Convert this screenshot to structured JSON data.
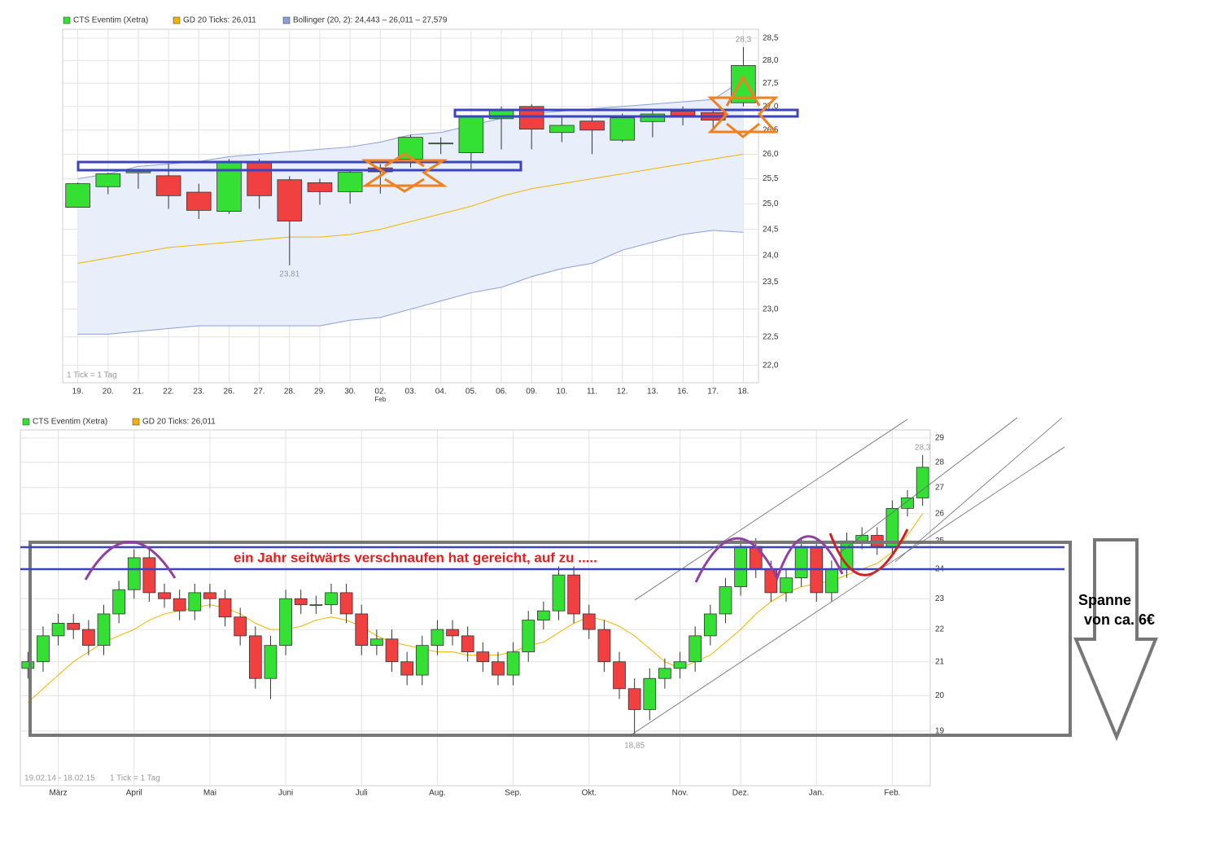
{
  "chart_data": [
    {
      "type": "candlestick",
      "log_scale": true,
      "grid": true,
      "categories": [
        "19.",
        "20.",
        "21.",
        "22.",
        "23.",
        "26.",
        "27.",
        "28.",
        "29.",
        "30.",
        "02.",
        "03.",
        "04.",
        "05.",
        "06.",
        "09.",
        "10.",
        "11.",
        "12.",
        "13.",
        "16.",
        "17.",
        "18."
      ],
      "x_sublabels": [
        null,
        null,
        null,
        null,
        null,
        null,
        null,
        null,
        null,
        null,
        "Feb",
        null,
        null,
        null,
        null,
        null,
        null,
        null,
        null,
        null,
        null,
        null,
        null
      ],
      "ylim": [
        21.7,
        28.7
      ],
      "yticks": [
        {
          "value": 22,
          "label": "22,0"
        },
        {
          "value": 22.5,
          "label": "22,5"
        },
        {
          "value": 23,
          "label": "23,0"
        },
        {
          "value": 23.5,
          "label": "23,5"
        },
        {
          "value": 24,
          "label": "24,0"
        },
        {
          "value": 24.5,
          "label": "24,5"
        },
        {
          "value": 25,
          "label": "25,0"
        },
        {
          "value": 25.5,
          "label": "25,5"
        },
        {
          "value": 26,
          "label": "26,0"
        },
        {
          "value": 26.5,
          "label": "26,5"
        },
        {
          "value": 27,
          "label": "27,0"
        },
        {
          "value": 27.5,
          "label": "27,5"
        },
        {
          "value": 28,
          "label": "28,0"
        },
        {
          "value": 28.5,
          "label": "28,5"
        }
      ],
      "up_color": "#33e033",
      "down_color": "#f04040",
      "series": [
        {
          "name": "CTS Eventim (Xetra)",
          "style": "candlestick",
          "color": "#33e033",
          "open": [
            24.93,
            25.34,
            25.62,
            25.56,
            25.23,
            24.85,
            25.82,
            25.48,
            25.42,
            25.24,
            25.72,
            25.9,
            26.23,
            26.03,
            26.74,
            27.0,
            26.45,
            26.69,
            26.29,
            26.68,
            26.9,
            26.87,
            27.08
          ],
          "high": [
            25.42,
            25.62,
            25.7,
            25.8,
            25.4,
            25.9,
            25.9,
            25.55,
            25.5,
            25.66,
            25.8,
            26.4,
            26.35,
            26.8,
            27.0,
            27.05,
            26.8,
            26.8,
            26.85,
            26.9,
            27.0,
            26.95,
            28.3
          ],
          "low": [
            24.93,
            25.19,
            25.3,
            24.9,
            24.7,
            24.8,
            24.9,
            23.81,
            24.98,
            25.0,
            25.2,
            25.73,
            26.0,
            25.7,
            26.1,
            26.1,
            26.25,
            26.0,
            26.25,
            26.35,
            26.6,
            26.45,
            27.0
          ],
          "close": [
            25.4,
            25.6,
            25.65,
            25.16,
            24.87,
            25.84,
            25.16,
            24.66,
            25.24,
            25.63,
            25.64,
            26.35,
            26.23,
            26.77,
            26.92,
            26.52,
            26.6,
            26.5,
            26.76,
            26.84,
            26.81,
            26.71,
            27.89
          ]
        },
        {
          "name": "GD 20 Ticks: 26,011",
          "style": "line",
          "color": "#f0b400",
          "values": [
            23.85,
            23.95,
            24.05,
            24.15,
            24.2,
            24.25,
            24.3,
            24.35,
            24.35,
            24.4,
            24.5,
            24.65,
            24.8,
            24.95,
            25.15,
            25.3,
            25.4,
            25.5,
            25.6,
            25.7,
            25.8,
            25.9,
            26.0
          ]
        },
        {
          "name": "Bollinger (20, 2): 24,443 – 26,011 – 27,579",
          "style": "band",
          "color": "#8aa0d8",
          "upper": [
            25.5,
            25.6,
            25.75,
            25.8,
            25.85,
            25.95,
            26.0,
            26.05,
            26.1,
            26.15,
            26.25,
            26.4,
            26.45,
            26.6,
            26.75,
            26.85,
            26.9,
            26.95,
            27.0,
            27.05,
            27.1,
            27.15,
            27.58
          ],
          "lower": [
            22.55,
            22.55,
            22.6,
            22.65,
            22.7,
            22.7,
            22.7,
            22.7,
            22.7,
            22.8,
            22.85,
            23.0,
            23.15,
            23.3,
            23.4,
            23.6,
            23.75,
            23.85,
            24.1,
            24.25,
            24.4,
            24.48,
            24.44
          ]
        }
      ],
      "high_label": {
        "value": 28.3,
        "label": "28,3"
      },
      "low_label": {
        "value": 23.81,
        "label": "23,81"
      },
      "tick_note": "1 Tick = 1 Tag"
    },
    {
      "type": "candlestick",
      "log_scale": true,
      "grid": true,
      "categories": [
        null,
        null,
        "März",
        null,
        null,
        null,
        null,
        "April",
        null,
        null,
        null,
        null,
        "Mai",
        null,
        null,
        null,
        null,
        "Juni",
        null,
        null,
        null,
        null,
        "Juli",
        null,
        null,
        null,
        null,
        "Aug.",
        null,
        null,
        null,
        null,
        "Sep.",
        null,
        null,
        null,
        null,
        "Okt.",
        null,
        null,
        null,
        null,
        null,
        "Nov.",
        null,
        null,
        null,
        "Dez.",
        null,
        null,
        null,
        null,
        "Jan.",
        null,
        null,
        null,
        null,
        "Feb.",
        null,
        null
      ],
      "ylim": [
        17.56,
        29.34
      ],
      "yticks": [
        19,
        20,
        21,
        22,
        23,
        24,
        25,
        26,
        27,
        28,
        29
      ],
      "up_color": "#33e033",
      "down_color": "#f04040",
      "series": [
        {
          "name": "CTS Eventim (Xetra)",
          "style": "candlestick",
          "color": "#33e033",
          "open": [
            20.8,
            21.0,
            21.8,
            22.2,
            22.0,
            21.5,
            22.5,
            23.3,
            24.4,
            23.2,
            23.0,
            22.6,
            23.2,
            23.0,
            22.4,
            21.8,
            20.5,
            21.5,
            23.0,
            22.8,
            22.8,
            23.2,
            22.5,
            21.5,
            21.7,
            21.0,
            20.6,
            21.5,
            22.0,
            21.8,
            21.3,
            21.0,
            20.6,
            21.3,
            22.3,
            22.6,
            23.8,
            22.5,
            22.0,
            21.0,
            20.2,
            19.6,
            20.5,
            20.8,
            21.0,
            21.8,
            22.5,
            23.4,
            24.8,
            24.0,
            23.2,
            23.7,
            24.8,
            23.2,
            24.0,
            25.0,
            25.2,
            24.8,
            26.2,
            26.6
          ],
          "high": [
            21.3,
            22.1,
            22.5,
            22.5,
            22.3,
            22.8,
            23.6,
            24.7,
            24.7,
            23.5,
            23.3,
            23.5,
            23.5,
            23.3,
            22.7,
            22.1,
            21.8,
            23.3,
            23.3,
            23.1,
            23.5,
            23.5,
            22.8,
            22.0,
            22.0,
            21.3,
            21.8,
            22.3,
            22.3,
            22.1,
            21.6,
            21.3,
            21.6,
            22.6,
            22.9,
            24.1,
            24.1,
            22.8,
            22.3,
            21.3,
            20.5,
            20.8,
            21.1,
            21.3,
            22.1,
            22.8,
            23.7,
            25.1,
            25.1,
            24.3,
            24.0,
            25.1,
            25.1,
            24.3,
            25.3,
            25.5,
            25.5,
            26.5,
            26.9,
            28.3
          ],
          "low": [
            20.5,
            20.7,
            21.5,
            21.7,
            21.2,
            21.2,
            22.2,
            23.0,
            22.9,
            22.7,
            22.3,
            22.3,
            22.7,
            22.1,
            21.5,
            20.2,
            19.9,
            21.2,
            22.5,
            22.5,
            22.5,
            22.2,
            21.2,
            21.2,
            20.7,
            20.3,
            20.3,
            21.2,
            21.5,
            21.0,
            20.7,
            20.3,
            20.3,
            21.0,
            22.0,
            22.3,
            22.2,
            21.7,
            20.7,
            19.9,
            18.85,
            19.3,
            20.2,
            20.5,
            20.7,
            21.5,
            22.2,
            23.1,
            23.7,
            22.9,
            22.9,
            23.4,
            22.9,
            22.9,
            23.7,
            24.7,
            24.5,
            24.5,
            25.9,
            26.3
          ],
          "close": [
            21.0,
            21.8,
            22.2,
            22.0,
            21.5,
            22.5,
            23.3,
            24.4,
            23.2,
            23.0,
            22.6,
            23.2,
            23.0,
            22.4,
            21.8,
            20.5,
            21.5,
            23.0,
            22.8,
            22.8,
            23.2,
            22.5,
            21.5,
            21.7,
            21.0,
            20.6,
            21.5,
            22.0,
            21.8,
            21.3,
            21.0,
            20.6,
            21.3,
            22.3,
            22.6,
            23.8,
            22.5,
            22.0,
            21.0,
            20.2,
            19.6,
            20.5,
            20.8,
            21.0,
            21.8,
            22.5,
            23.4,
            24.8,
            24.0,
            23.2,
            23.7,
            24.8,
            23.2,
            24.0,
            25.0,
            25.2,
            24.8,
            26.2,
            26.6,
            27.8
          ]
        },
        {
          "name": "GD 20 Ticks: 26,011",
          "style": "line",
          "color": "#f0b400",
          "values": [
            19.8,
            20.2,
            20.6,
            21.0,
            21.3,
            21.6,
            21.8,
            22.0,
            22.3,
            22.5,
            22.6,
            22.7,
            22.8,
            22.7,
            22.5,
            22.2,
            22.0,
            22.0,
            22.1,
            22.3,
            22.4,
            22.3,
            22.1,
            21.8,
            21.6,
            21.5,
            21.4,
            21.3,
            21.3,
            21.2,
            21.2,
            21.2,
            21.3,
            21.5,
            21.6,
            21.9,
            22.2,
            22.4,
            22.3,
            22.1,
            21.8,
            21.4,
            21.0,
            20.8,
            21.0,
            21.2,
            21.6,
            22.0,
            22.5,
            22.9,
            23.2,
            23.4,
            23.5,
            23.6,
            23.8,
            24.0,
            24.2,
            24.6,
            25.2,
            26.0
          ]
        }
      ],
      "high_label": {
        "value": 28.3,
        "label": "28,3"
      },
      "low_label": {
        "value": 18.85,
        "label": "18,85"
      },
      "date_range": "19.02.14 - 18.02.15",
      "tick_note": "1 Tick = 1 Tag"
    }
  ],
  "annotations": {
    "headline": "ein Jahr seitwärts verschnaufen hat gereicht, auf zu .....",
    "span_line1": "Spanne",
    "span_line2": "von ca. 6€"
  }
}
